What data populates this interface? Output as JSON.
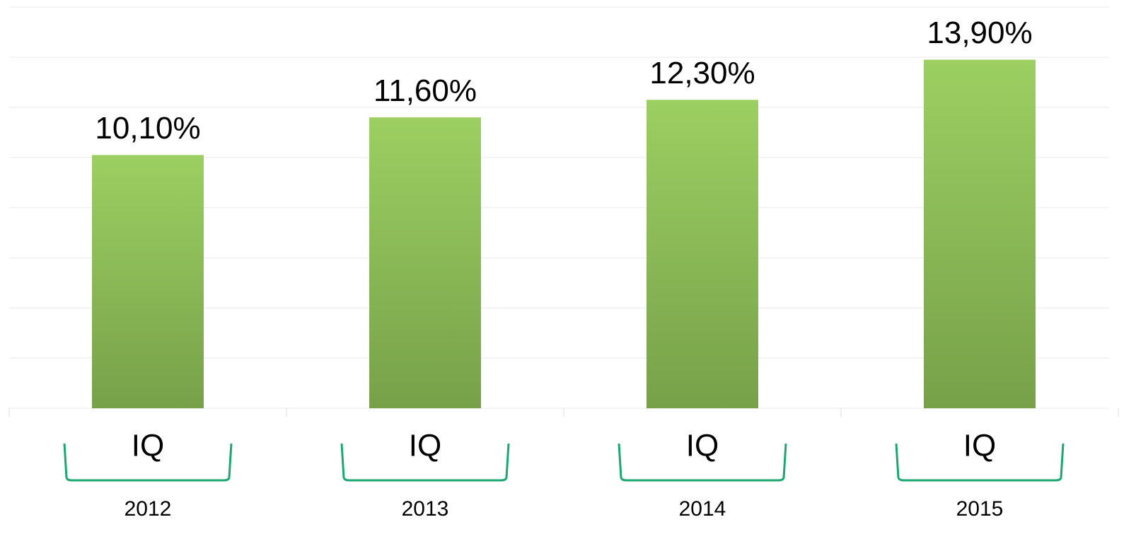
{
  "chart_data": {
    "type": "bar",
    "categories": [
      "IQ",
      "IQ",
      "IQ",
      "IQ"
    ],
    "groups": [
      "2012",
      "2013",
      "2014",
      "2015"
    ],
    "values": [
      10.1,
      11.6,
      12.3,
      13.9
    ],
    "value_labels": [
      "10,10%",
      "11,60%",
      "12,30%",
      "13,90%"
    ],
    "color": "#9ccf62",
    "ylim": [
      0,
      16
    ],
    "yticks": [
      0,
      2,
      4,
      6,
      8,
      10,
      12,
      14,
      16
    ],
    "grid": true
  }
}
